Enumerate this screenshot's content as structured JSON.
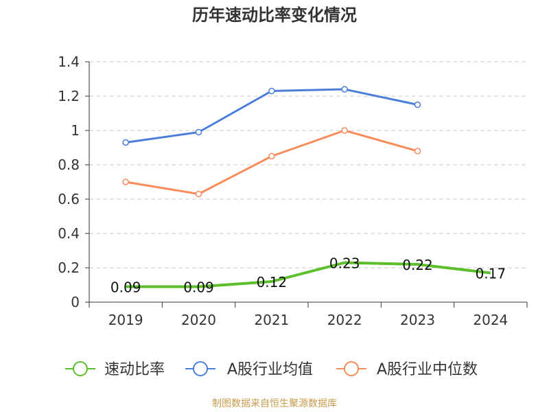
{
  "header": {
    "title": "历年速动比率变化情况"
  },
  "footer": {
    "source": "制图数据来自恒生聚源数据库"
  },
  "colors": {
    "series_0": "#5cbf2a",
    "series_1": "#4a7fd9",
    "series_2": "#f88b5a"
  },
  "chart_data": {
    "type": "line",
    "title": "历年速动比率变化情况",
    "xlabel": "",
    "ylabel": "",
    "categories": [
      "2019",
      "2020",
      "2021",
      "2022",
      "2023",
      "2024"
    ],
    "ylim": [
      0,
      1.4
    ],
    "yticks": [
      "0",
      "0.2",
      "0.4",
      "0.6",
      "0.8",
      "1",
      "1.2",
      "1.4"
    ],
    "grid": true,
    "legend_position": "bottom",
    "series": [
      {
        "name": "速动比率",
        "values": [
          0.09,
          0.09,
          0.12,
          0.23,
          0.22,
          0.17
        ],
        "labels": [
          "0.09",
          "0.09",
          "0.12",
          "0.23",
          "0.22",
          "0.17"
        ]
      },
      {
        "name": "A股行业均值",
        "values": [
          0.93,
          0.99,
          1.23,
          1.24,
          1.15,
          null
        ]
      },
      {
        "name": "A股行业中位数",
        "values": [
          0.7,
          0.63,
          0.85,
          1.0,
          0.88,
          null
        ]
      }
    ]
  }
}
